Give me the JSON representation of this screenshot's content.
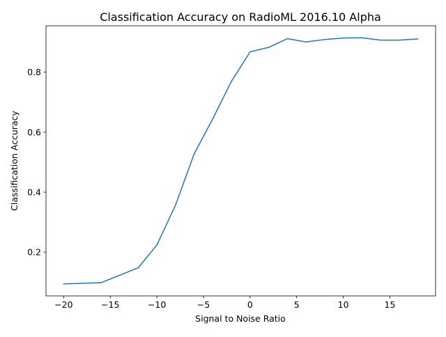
{
  "chart_data": {
    "type": "line",
    "title": "Classification Accuracy on RadioML 2016.10 Alpha",
    "xlabel": "Signal to Noise Ratio",
    "ylabel": "Classification Accuracy",
    "xlim": [
      -21.9,
      19.9
    ],
    "ylim": [
      0.054,
      0.955
    ],
    "xticks": [
      -20,
      -15,
      -10,
      -5,
      0,
      5,
      10,
      15
    ],
    "yticks": [
      0.2,
      0.4,
      0.6,
      0.8
    ],
    "xtick_labels": [
      "−20",
      "−15",
      "−10",
      "−5",
      "0",
      "5",
      "10",
      "15"
    ],
    "ytick_labels": [
      "0.2",
      "0.4",
      "0.6",
      "0.8"
    ],
    "grid": false,
    "legend": "none",
    "series": [
      {
        "color": "#1f77b4",
        "x": [
          -20,
          -18,
          -16,
          -14,
          -12,
          -10,
          -8,
          -6,
          -4,
          -2,
          0,
          2,
          4,
          6,
          8,
          10,
          12,
          14,
          16,
          18
        ],
        "y": [
          0.094,
          0.096,
          0.098,
          0.123,
          0.148,
          0.224,
          0.357,
          0.528,
          0.645,
          0.77,
          0.868,
          0.883,
          0.912,
          0.901,
          0.909,
          0.914,
          0.915,
          0.907,
          0.907,
          0.911
        ]
      }
    ]
  }
}
